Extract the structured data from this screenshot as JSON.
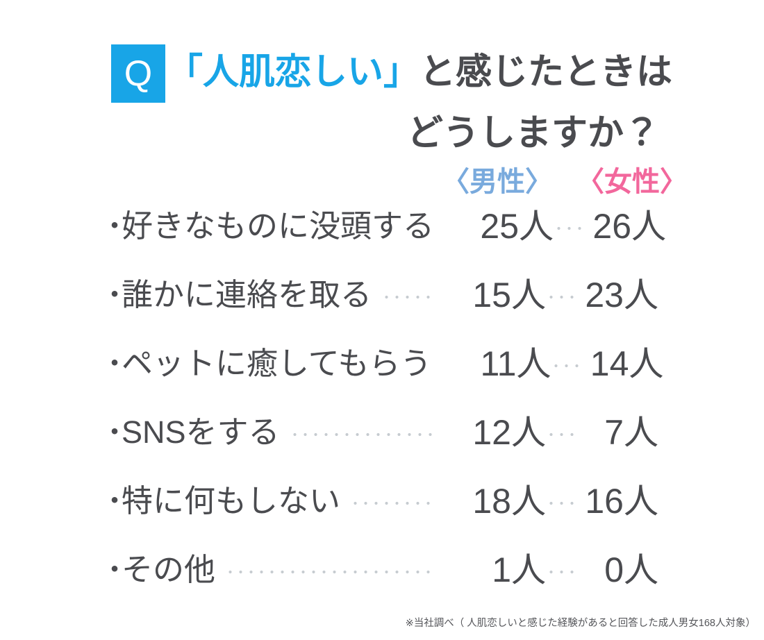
{
  "colors": {
    "accent_blue": "#18a5e7",
    "male_blue": "#79aadd",
    "female_pink": "#f2679c",
    "text_dark": "#4a4b4f",
    "leader_dot_gray": "#c6cbd0",
    "footnote_gray": "#55565a"
  },
  "question": {
    "q_badge": "Q",
    "highlight": "「人肌恋しい」",
    "line1_rest": "と感じたときは",
    "line2": "どうしますか？"
  },
  "table": {
    "bullet": "・",
    "columns": {
      "male": "〈男性〉",
      "female": "〈女性〉"
    },
    "rows": [
      {
        "label": "好きなものに没頭する",
        "male": "25人",
        "female": "26人"
      },
      {
        "label": "誰かに連絡を取る",
        "male": "15人",
        "female": "23人"
      },
      {
        "label": "ペットに癒してもらう",
        "male": "11人",
        "female": "14人"
      },
      {
        "label": "SNSをする",
        "male": "12人",
        "female": "7人"
      },
      {
        "label": "特に何もしない",
        "male": "18人",
        "female": "16人"
      },
      {
        "label": "その他",
        "male": "1人",
        "female": "0人"
      }
    ]
  },
  "footnote": "※当社調べ（ 人肌恋しいと感じた経験があると回答した成人男女168人対象）",
  "chart_data": {
    "type": "table",
    "title": "「人肌恋しい」と感じたときはどうしますか？",
    "categories": [
      "好きなものに没頭する",
      "誰かに連絡を取る",
      "ペットに癒してもらう",
      "SNSをする",
      "特に何もしない",
      "その他"
    ],
    "series": [
      {
        "name": "男性",
        "values": [
          25,
          15,
          11,
          12,
          18,
          1
        ]
      },
      {
        "name": "女性",
        "values": [
          26,
          23,
          14,
          7,
          16,
          0
        ]
      }
    ],
    "unit": "人",
    "legend_position": "top-right",
    "legend_colors": {
      "男性": "#79aadd",
      "女性": "#f2679c"
    },
    "note": "※当社調べ（ 人肌恋しいと感じた経験があると回答した成人男女168人対象）"
  }
}
